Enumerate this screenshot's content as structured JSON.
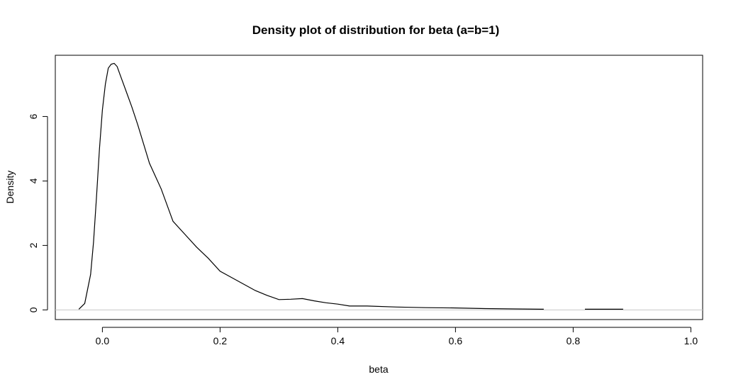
{
  "chart_data": {
    "type": "line",
    "title": "Density plot of distribution for beta (a=b=1)",
    "xlabel": "beta",
    "ylabel": "Density",
    "xlim": [
      -0.08,
      1.02
    ],
    "ylim": [
      -0.3,
      7.9
    ],
    "x_ticks": [
      "0.0",
      "0.2",
      "0.4",
      "0.6",
      "0.8",
      "1.0"
    ],
    "y_ticks": [
      "0",
      "2",
      "4",
      "6"
    ],
    "grid": false,
    "legend": "none",
    "baseline": 0,
    "baseline_color": "#c8c8c8",
    "line_color": "#000000",
    "series": [
      {
        "x": [
          -0.04,
          -0.03,
          -0.02,
          -0.015,
          -0.01,
          -0.005,
          0.0,
          0.005,
          0.01,
          0.015,
          0.02,
          0.025,
          0.03,
          0.04,
          0.05,
          0.06,
          0.07,
          0.08,
          0.1,
          0.12,
          0.14,
          0.16,
          0.18,
          0.2,
          0.22,
          0.24,
          0.26,
          0.28,
          0.3,
          0.32,
          0.34,
          0.36,
          0.38,
          0.4,
          0.42,
          0.45,
          0.5,
          0.55,
          0.6,
          0.65,
          0.7,
          0.75,
          0.76,
          0.82,
          0.86,
          0.885
        ],
        "y": [
          0.02,
          0.2,
          1.1,
          2.1,
          3.5,
          5.0,
          6.2,
          7.0,
          7.5,
          7.62,
          7.65,
          7.55,
          7.3,
          6.8,
          6.3,
          5.75,
          5.15,
          4.55,
          3.75,
          2.75,
          2.35,
          1.95,
          1.6,
          1.2,
          1.0,
          0.8,
          0.6,
          0.45,
          0.32,
          0.33,
          0.35,
          0.28,
          0.22,
          0.18,
          0.12,
          0.12,
          0.09,
          0.07,
          0.06,
          0.04,
          0.03,
          0.02,
          null,
          0.02,
          0.02,
          0.02
        ]
      }
    ]
  }
}
